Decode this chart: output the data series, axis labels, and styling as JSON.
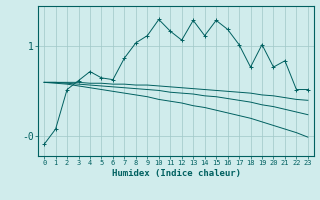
{
  "xlabel": "Humidex (Indice chaleur)",
  "ylabel": "",
  "bg_color": "#d0ecec",
  "grid_color": "#a0c8c8",
  "line_color": "#006060",
  "xlim": [
    -0.5,
    23.5
  ],
  "ylim": [
    -0.22,
    1.45
  ],
  "yticks": [
    0.0,
    1.0
  ],
  "ytick_labels": [
    "-0",
    "1"
  ],
  "xticks": [
    0,
    1,
    2,
    3,
    4,
    5,
    6,
    7,
    8,
    9,
    10,
    11,
    12,
    13,
    14,
    15,
    16,
    17,
    18,
    19,
    20,
    21,
    22,
    23
  ],
  "x": [
    0,
    1,
    2,
    3,
    4,
    5,
    6,
    7,
    8,
    9,
    10,
    11,
    12,
    13,
    14,
    15,
    16,
    17,
    18,
    19,
    20,
    21,
    22,
    23
  ],
  "line1_y": [
    -0.09,
    0.08,
    0.52,
    0.62,
    0.72,
    0.65,
    0.63,
    0.87,
    1.04,
    1.12,
    1.3,
    1.17,
    1.07,
    1.29,
    1.12,
    1.29,
    1.19,
    1.02,
    0.77,
    1.02,
    0.77,
    0.84,
    0.52,
    0.52
  ],
  "line2_y": [
    0.6,
    0.6,
    0.6,
    0.6,
    0.59,
    0.59,
    0.58,
    0.58,
    0.57,
    0.57,
    0.56,
    0.55,
    0.54,
    0.53,
    0.52,
    0.51,
    0.5,
    0.49,
    0.48,
    0.46,
    0.45,
    0.43,
    0.41,
    0.4
  ],
  "line3_y": [
    0.6,
    0.6,
    0.59,
    0.58,
    0.57,
    0.56,
    0.55,
    0.54,
    0.53,
    0.52,
    0.51,
    0.49,
    0.48,
    0.47,
    0.45,
    0.44,
    0.42,
    0.4,
    0.38,
    0.35,
    0.33,
    0.3,
    0.27,
    0.24
  ],
  "line4_y": [
    0.6,
    0.59,
    0.58,
    0.56,
    0.54,
    0.52,
    0.5,
    0.48,
    0.46,
    0.44,
    0.41,
    0.39,
    0.37,
    0.34,
    0.32,
    0.29,
    0.26,
    0.23,
    0.2,
    0.16,
    0.12,
    0.08,
    0.04,
    -0.01
  ]
}
